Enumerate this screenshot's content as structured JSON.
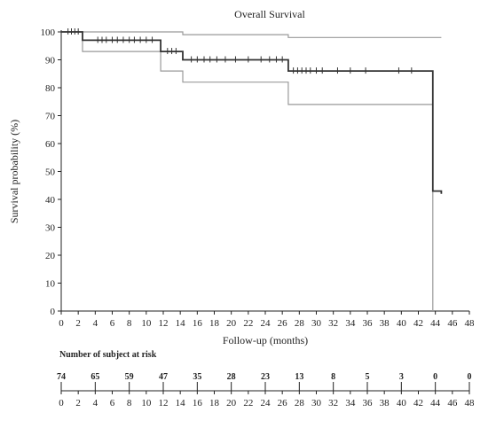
{
  "chart_data": {
    "type": "line",
    "title": "Overall Survival",
    "xlabel": "Follow-up (months)",
    "ylabel": "Survival probability (%)",
    "xlim": [
      0,
      48
    ],
    "ylim": [
      0,
      100
    ],
    "x_ticks": [
      0,
      2,
      4,
      6,
      8,
      10,
      12,
      14,
      16,
      18,
      20,
      22,
      24,
      26,
      28,
      30,
      32,
      34,
      36,
      38,
      40,
      42,
      44,
      46,
      48
    ],
    "y_ticks": [
      0,
      10,
      20,
      30,
      40,
      50,
      60,
      70,
      80,
      90,
      100
    ],
    "grid": false,
    "series": [
      {
        "role": "estimate",
        "color": "#333333",
        "steps": [
          [
            0,
            100
          ],
          [
            2.5,
            97
          ],
          [
            11.7,
            93
          ],
          [
            14.3,
            90
          ],
          [
            26.7,
            86
          ],
          [
            43.7,
            43
          ],
          [
            44.7,
            42
          ]
        ],
        "censor_ticks": [
          [
            0.8,
            100
          ],
          [
            1.2,
            100
          ],
          [
            1.6,
            100
          ],
          [
            2.0,
            100
          ],
          [
            4.3,
            97
          ],
          [
            4.8,
            97
          ],
          [
            5.3,
            97
          ],
          [
            6.0,
            97
          ],
          [
            6.6,
            97
          ],
          [
            7.3,
            97
          ],
          [
            8.0,
            97
          ],
          [
            8.6,
            97
          ],
          [
            9.3,
            97
          ],
          [
            10.0,
            97
          ],
          [
            10.7,
            97
          ],
          [
            12.5,
            93
          ],
          [
            13.0,
            93
          ],
          [
            13.5,
            93
          ],
          [
            15.3,
            90
          ],
          [
            16.0,
            90
          ],
          [
            16.8,
            90
          ],
          [
            17.5,
            90
          ],
          [
            18.3,
            90
          ],
          [
            19.3,
            90
          ],
          [
            20.5,
            90
          ],
          [
            22.0,
            90
          ],
          [
            23.5,
            90
          ],
          [
            24.5,
            90
          ],
          [
            25.3,
            90
          ],
          [
            26.0,
            90
          ],
          [
            27.3,
            86
          ],
          [
            27.8,
            86
          ],
          [
            28.3,
            86
          ],
          [
            28.8,
            86
          ],
          [
            29.3,
            86
          ],
          [
            30.0,
            86
          ],
          [
            30.7,
            86
          ],
          [
            32.5,
            86
          ],
          [
            34.0,
            86
          ],
          [
            35.8,
            86
          ],
          [
            39.7,
            86
          ],
          [
            41.2,
            86
          ]
        ]
      },
      {
        "role": "upper-bound",
        "color": "#999999",
        "steps": [
          [
            0,
            100
          ],
          [
            11.7,
            100
          ],
          [
            14.3,
            99
          ],
          [
            26.7,
            98
          ],
          [
            44.7,
            98
          ]
        ]
      },
      {
        "role": "lower-bound",
        "color": "#999999",
        "steps": [
          [
            0,
            100
          ],
          [
            2.5,
            93
          ],
          [
            11.7,
            86
          ],
          [
            14.3,
            82
          ],
          [
            26.7,
            74
          ],
          [
            43.7,
            0
          ]
        ]
      }
    ]
  },
  "risk_table": {
    "title": "Number of subject at risk",
    "times": [
      0,
      4,
      8,
      12,
      16,
      20,
      24,
      28,
      32,
      36,
      40,
      44,
      48
    ],
    "counts": [
      "74",
      "65",
      "59",
      "47",
      "35",
      "28",
      "23",
      "13",
      "8",
      "5",
      "3",
      "0",
      "0"
    ]
  }
}
